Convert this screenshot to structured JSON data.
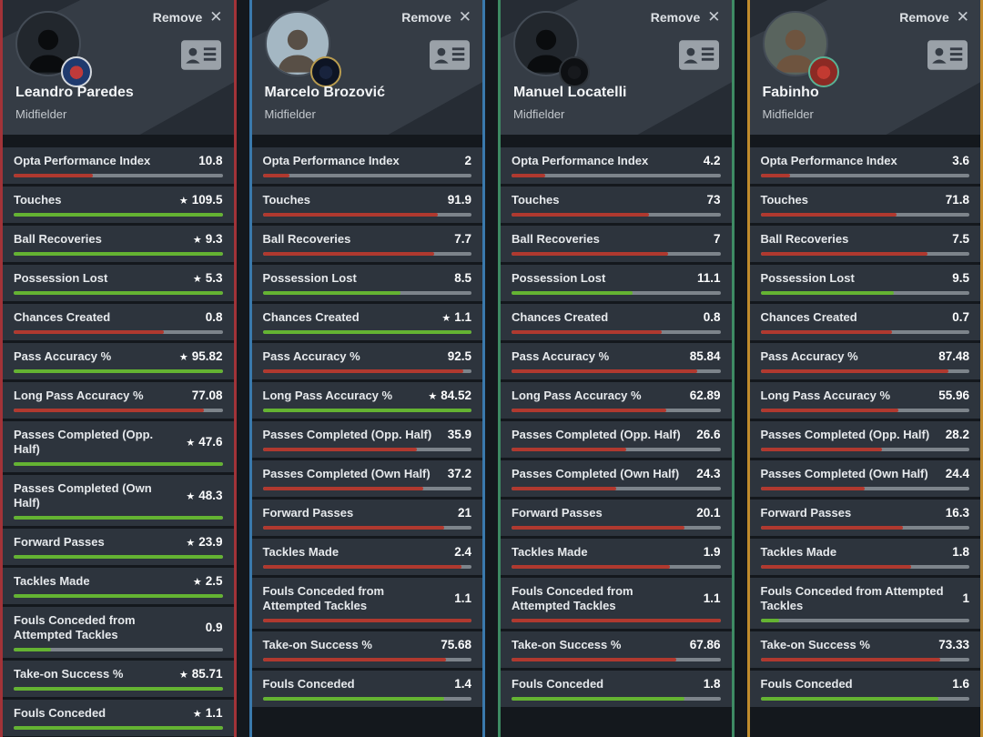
{
  "ui": {
    "remove_label": "Remove",
    "close_icon": "✕",
    "star_icon": "★"
  },
  "colors": {
    "page_bg": "#14181d",
    "card_bg": "#353c45",
    "card_corner": "#262c34",
    "row_bg": "#2d343d",
    "bar_track": "#7d848b",
    "bar_red": "#b0392f",
    "bar_green": "#64b332",
    "text_primary": "#f2f4f6",
    "text_secondary": "#c3c8cd"
  },
  "stat_labels": [
    "Opta Performance Index",
    "Touches",
    "Ball Recoveries",
    "Possession Lost",
    "Chances Created",
    "Pass Accuracy %",
    "Long Pass Accuracy %",
    "Passes Completed (Opp. Half)",
    "Passes Completed (Own Half)",
    "Forward Passes",
    "Tackles Made",
    "Fouls Conceded from Attempted Tackles",
    "Take-on Success %",
    "Fouls Conceded"
  ],
  "players": [
    {
      "name": "Leandro Paredes",
      "position": "Midfielder",
      "accent": "#a23338",
      "avatar_type": "silhouette",
      "avatar_colors": {
        "bg": "#22272d",
        "person": "#0a0c0e"
      },
      "badge": {
        "icon": "psg-badge-icon",
        "inner": "#c03a3a",
        "outer": "#1f3a6e",
        "ring": "#d4d8dd"
      },
      "stats": [
        {
          "value": "10.8",
          "starred": false,
          "bar_color": "red",
          "bar_fill": 38
        },
        {
          "value": "109.5",
          "starred": true,
          "bar_color": "green",
          "bar_fill": 100
        },
        {
          "value": "9.3",
          "starred": true,
          "bar_color": "green",
          "bar_fill": 100
        },
        {
          "value": "5.3",
          "starred": true,
          "bar_color": "green",
          "bar_fill": 100
        },
        {
          "value": "0.8",
          "starred": false,
          "bar_color": "red",
          "bar_fill": 72
        },
        {
          "value": "95.82",
          "starred": true,
          "bar_color": "green",
          "bar_fill": 100
        },
        {
          "value": "77.08",
          "starred": false,
          "bar_color": "red",
          "bar_fill": 91
        },
        {
          "value": "47.6",
          "starred": true,
          "bar_color": "green",
          "bar_fill": 100
        },
        {
          "value": "48.3",
          "starred": true,
          "bar_color": "green",
          "bar_fill": 100
        },
        {
          "value": "23.9",
          "starred": true,
          "bar_color": "green",
          "bar_fill": 100
        },
        {
          "value": "2.5",
          "starred": true,
          "bar_color": "green",
          "bar_fill": 100
        },
        {
          "value": "0.9",
          "starred": false,
          "bar_color": "green",
          "bar_fill": 18
        },
        {
          "value": "85.71",
          "starred": true,
          "bar_color": "green",
          "bar_fill": 100
        },
        {
          "value": "1.1",
          "starred": true,
          "bar_color": "green",
          "bar_fill": 100
        }
      ]
    },
    {
      "name": "Marcelo Brozović",
      "position": "Midfielder",
      "accent": "#3a79ac",
      "avatar_type": "photo",
      "avatar_colors": {
        "bg": "#a4b7c3",
        "person": "#584f46"
      },
      "badge": {
        "icon": "inter-milan-badge-icon",
        "inner": "#18233d",
        "outer": "#0d1424",
        "ring": "#b99c4f"
      },
      "stats": [
        {
          "value": "2",
          "starred": false,
          "bar_color": "red",
          "bar_fill": 13
        },
        {
          "value": "91.9",
          "starred": false,
          "bar_color": "red",
          "bar_fill": 84
        },
        {
          "value": "7.7",
          "starred": false,
          "bar_color": "red",
          "bar_fill": 82
        },
        {
          "value": "8.5",
          "starred": false,
          "bar_color": "green",
          "bar_fill": 66
        },
        {
          "value": "1.1",
          "starred": true,
          "bar_color": "green",
          "bar_fill": 100
        },
        {
          "value": "92.5",
          "starred": false,
          "bar_color": "red",
          "bar_fill": 96
        },
        {
          "value": "84.52",
          "starred": true,
          "bar_color": "green",
          "bar_fill": 100
        },
        {
          "value": "35.9",
          "starred": false,
          "bar_color": "red",
          "bar_fill": 74
        },
        {
          "value": "37.2",
          "starred": false,
          "bar_color": "red",
          "bar_fill": 77
        },
        {
          "value": "21",
          "starred": false,
          "bar_color": "red",
          "bar_fill": 87
        },
        {
          "value": "2.4",
          "starred": false,
          "bar_color": "red",
          "bar_fill": 95
        },
        {
          "value": "1.1",
          "starred": false,
          "bar_color": "red",
          "bar_fill": 100
        },
        {
          "value": "75.68",
          "starred": false,
          "bar_color": "red",
          "bar_fill": 88
        },
        {
          "value": "1.4",
          "starred": false,
          "bar_color": "green",
          "bar_fill": 87
        }
      ]
    },
    {
      "name": "Manuel Locatelli",
      "position": "Midfielder",
      "accent": "#3e8a63",
      "avatar_type": "silhouette",
      "avatar_colors": {
        "bg": "#22272d",
        "person": "#0a0c0e"
      },
      "badge": {
        "icon": "juventus-badge-icon",
        "inner": "#17191d",
        "outer": "#0e1013",
        "ring": "#2f343a"
      },
      "stats": [
        {
          "value": "4.2",
          "starred": false,
          "bar_color": "red",
          "bar_fill": 16
        },
        {
          "value": "73",
          "starred": false,
          "bar_color": "red",
          "bar_fill": 66
        },
        {
          "value": "7",
          "starred": false,
          "bar_color": "red",
          "bar_fill": 75
        },
        {
          "value": "11.1",
          "starred": false,
          "bar_color": "green",
          "bar_fill": 58
        },
        {
          "value": "0.8",
          "starred": false,
          "bar_color": "red",
          "bar_fill": 72
        },
        {
          "value": "85.84",
          "starred": false,
          "bar_color": "red",
          "bar_fill": 89
        },
        {
          "value": "62.89",
          "starred": false,
          "bar_color": "red",
          "bar_fill": 74
        },
        {
          "value": "26.6",
          "starred": false,
          "bar_color": "red",
          "bar_fill": 55
        },
        {
          "value": "24.3",
          "starred": false,
          "bar_color": "red",
          "bar_fill": 50
        },
        {
          "value": "20.1",
          "starred": false,
          "bar_color": "red",
          "bar_fill": 83
        },
        {
          "value": "1.9",
          "starred": false,
          "bar_color": "red",
          "bar_fill": 76
        },
        {
          "value": "1.1",
          "starred": false,
          "bar_color": "red",
          "bar_fill": 100
        },
        {
          "value": "67.86",
          "starred": false,
          "bar_color": "red",
          "bar_fill": 79
        },
        {
          "value": "1.8",
          "starred": false,
          "bar_color": "green",
          "bar_fill": 83
        }
      ]
    },
    {
      "name": "Fabinho",
      "position": "Midfielder",
      "accent": "#c08b2d",
      "avatar_type": "photo",
      "avatar_colors": {
        "bg": "#59645e",
        "person": "#6e543f"
      },
      "badge": {
        "icon": "liverpool-badge-icon",
        "inner": "#c23a31",
        "outer": "#8c2a24",
        "ring": "#5ab193"
      },
      "stats": [
        {
          "value": "3.6",
          "starred": false,
          "bar_color": "red",
          "bar_fill": 14
        },
        {
          "value": "71.8",
          "starred": false,
          "bar_color": "red",
          "bar_fill": 65
        },
        {
          "value": "7.5",
          "starred": false,
          "bar_color": "red",
          "bar_fill": 80
        },
        {
          "value": "9.5",
          "starred": false,
          "bar_color": "green",
          "bar_fill": 64
        },
        {
          "value": "0.7",
          "starred": false,
          "bar_color": "red",
          "bar_fill": 63
        },
        {
          "value": "87.48",
          "starred": false,
          "bar_color": "red",
          "bar_fill": 90
        },
        {
          "value": "55.96",
          "starred": false,
          "bar_color": "red",
          "bar_fill": 66
        },
        {
          "value": "28.2",
          "starred": false,
          "bar_color": "red",
          "bar_fill": 58
        },
        {
          "value": "24.4",
          "starred": false,
          "bar_color": "red",
          "bar_fill": 50
        },
        {
          "value": "16.3",
          "starred": false,
          "bar_color": "red",
          "bar_fill": 68
        },
        {
          "value": "1.8",
          "starred": false,
          "bar_color": "red",
          "bar_fill": 72
        },
        {
          "value": "1",
          "starred": false,
          "bar_color": "green",
          "bar_fill": 9
        },
        {
          "value": "73.33",
          "starred": false,
          "bar_color": "red",
          "bar_fill": 86
        },
        {
          "value": "1.6",
          "starred": false,
          "bar_color": "green",
          "bar_fill": 85
        }
      ]
    }
  ]
}
